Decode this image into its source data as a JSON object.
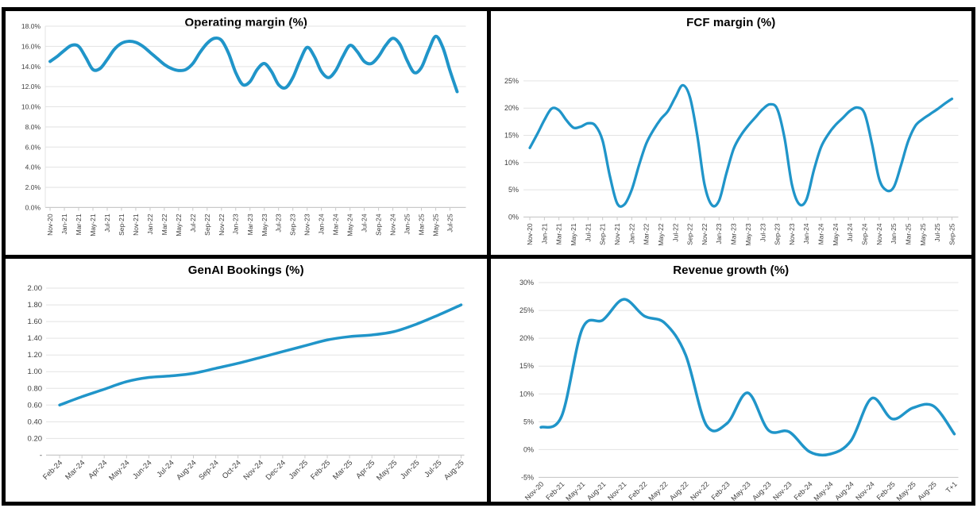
{
  "colors": {
    "line": "#2095C9",
    "gridline": "#E3E3E3",
    "axis_line": "#C9C9C9",
    "tick_label": "#3F3F3F",
    "title": "#000000",
    "frame": "#000000",
    "panel_background": "#FFFFFF"
  },
  "chart_data": [
    {
      "id": "operating-margin",
      "type": "line",
      "title": "Operating margin (%)",
      "legend": "none",
      "grid": true,
      "ylim": [
        0,
        18
      ],
      "y_tick_labels": [
        "18.0%",
        "16.0%",
        "14.0%",
        "12.0%",
        "10.0%",
        "8.0%",
        "6.0%",
        "4.0%",
        "2.0%",
        "0.0%"
      ],
      "y_tick_values": [
        18,
        16,
        14,
        12,
        10,
        8,
        6,
        4,
        2,
        0
      ],
      "x_frequency": "monthly",
      "x_start": "Nov-20",
      "x_end": "Aug-25",
      "label_every_n_points": 2,
      "x_tick_labels": [
        "Nov-20",
        "Jan-21",
        "Mar-21",
        "May-21",
        "Jul-21",
        "Sep-21",
        "Nov-21",
        "Jan-22",
        "Mar-22",
        "May-22",
        "Jul-22",
        "Sep-22",
        "Nov-22",
        "Jan-23",
        "Mar-23",
        "May-23",
        "Jul-23",
        "Sep-23",
        "Nov-23",
        "Jan-24",
        "Mar-24",
        "May-24",
        "Jul-24",
        "Sep-24",
        "Nov-24",
        "Jan-25",
        "Mar-25",
        "May-25",
        "Jul-25"
      ],
      "values": [
        14.5,
        15.0,
        15.6,
        16.1,
        16.0,
        14.9,
        13.7,
        13.8,
        14.7,
        15.7,
        16.3,
        16.5,
        16.4,
        16.0,
        15.4,
        14.8,
        14.2,
        13.8,
        13.6,
        13.7,
        14.3,
        15.4,
        16.3,
        16.8,
        16.6,
        15.3,
        13.4,
        12.2,
        12.5,
        13.7,
        14.3,
        13.5,
        12.2,
        11.9,
        12.9,
        14.6,
        15.9,
        15.0,
        13.5,
        12.9,
        13.6,
        15.0,
        16.1,
        15.5,
        14.5,
        14.3,
        15.0,
        16.1,
        16.8,
        16.2,
        14.6,
        13.4,
        13.9,
        15.6,
        17.0,
        15.9,
        13.6,
        11.5
      ]
    },
    {
      "id": "fcf-margin",
      "type": "line",
      "title": "FCF margin (%)",
      "legend": "none",
      "grid": true,
      "ylim": [
        0,
        27
      ],
      "y_tick_labels": [
        "25%",
        "20%",
        "15%",
        "10%",
        "5%",
        "0%"
      ],
      "y_tick_values": [
        25,
        20,
        15,
        10,
        5,
        0
      ],
      "x_frequency": "monthly",
      "x_start": "Nov-20",
      "x_end": "Sep-25",
      "label_every_n_points": 2,
      "x_tick_labels": [
        "Nov-20",
        "Jan-21",
        "Mar-21",
        "May-21",
        "Jul-21",
        "Sep-21",
        "Nov-21",
        "Jan-22",
        "Mar-22",
        "May-22",
        "Jul-22",
        "Sep-22",
        "Nov-22",
        "Jan-23",
        "Mar-23",
        "May-23",
        "Jul-23",
        "Sep-23",
        "Nov-23",
        "Jan-24",
        "Mar-24",
        "May-24",
        "Jul-24",
        "Sep-24",
        "Nov-24",
        "Jan-25",
        "Mar-25",
        "May-25",
        "Jul-25",
        "Sep-25"
      ],
      "values": [
        12.7,
        15.2,
        17.8,
        19.9,
        19.6,
        17.8,
        16.4,
        16.6,
        17.2,
        16.8,
        14.0,
        7.5,
        2.5,
        2.3,
        5.0,
        9.5,
        13.5,
        16.0,
        18.0,
        19.5,
        22.0,
        24.2,
        22.0,
        15.0,
        6.0,
        2.2,
        3.0,
        8.0,
        12.5,
        15.0,
        16.8,
        18.3,
        19.8,
        20.7,
        19.8,
        14.5,
        6.0,
        2.4,
        3.2,
        8.5,
        12.8,
        15.2,
        16.9,
        18.2,
        19.5,
        20.1,
        19.0,
        13.5,
        7.0,
        4.9,
        5.5,
        9.5,
        14.0,
        16.8,
        18.0,
        18.9,
        19.8,
        20.8,
        21.7
      ]
    },
    {
      "id": "genai-bookings",
      "type": "line",
      "title": "GenAI Bookings (%)",
      "legend": "none",
      "grid": true,
      "ylim": [
        0,
        2.0
      ],
      "y_tick_labels": [
        "2.00",
        "1.80",
        "1.60",
        "1.40",
        "1.20",
        "1.00",
        "0.80",
        "0.60",
        "0.40",
        "0.20",
        "-"
      ],
      "y_tick_values": [
        2.0,
        1.8,
        1.6,
        1.4,
        1.2,
        1.0,
        0.8,
        0.6,
        0.4,
        0.2,
        0
      ],
      "x_frequency": "monthly",
      "x_start": "Feb-24",
      "x_end": "Aug-25",
      "label_every_n_points": 1,
      "x_tick_labels": [
        "Feb-24",
        "Mar-24",
        "Apr-24",
        "May-24",
        "Jun-24",
        "Jul-24",
        "Aug-24",
        "Sep-24",
        "Oct-24",
        "Nov-24",
        "Dec-24",
        "Jan-25",
        "Feb-25",
        "Mar-25",
        "Apr-25",
        "May-25",
        "Jun-25",
        "Jul-25",
        "Aug-25"
      ],
      "values": [
        0.6,
        0.7,
        0.79,
        0.88,
        0.93,
        0.95,
        0.98,
        1.04,
        1.1,
        1.17,
        1.24,
        1.31,
        1.38,
        1.42,
        1.44,
        1.48,
        1.57,
        1.68,
        1.8
      ]
    },
    {
      "id": "revenue-growth",
      "type": "line",
      "title": "Revenue growth (%)",
      "legend": "none",
      "grid": true,
      "ylim": [
        -5,
        30
      ],
      "y_tick_labels": [
        "30%",
        "25%",
        "20%",
        "15%",
        "10%",
        "5%",
        "0%",
        "-5%"
      ],
      "y_tick_values": [
        30,
        25,
        20,
        15,
        10,
        5,
        0,
        -5
      ],
      "x_frequency": "quarterly",
      "x_start": "Nov-20",
      "x_end": "T+1",
      "label_every_n_points": 1,
      "x_tick_labels": [
        "Nov-20",
        "Feb-21",
        "May-21",
        "Aug-21",
        "Nov-21",
        "Feb-22",
        "May-22",
        "Aug-22",
        "Nov-22",
        "Feb-23",
        "May-23",
        "Aug-23",
        "Nov-23",
        "Feb-24",
        "May-24",
        "Aug-24",
        "Nov-24",
        "Feb-25",
        "May-25",
        "Aug-25",
        "T+1"
      ],
      "values": [
        4.0,
        6.0,
        21.7,
        23.3,
        27.0,
        24.0,
        22.7,
        17.0,
        4.4,
        4.7,
        10.2,
        3.5,
        3.2,
        -0.4,
        -0.8,
        1.6,
        9.2,
        5.5,
        7.5,
        7.8,
        2.8
      ]
    }
  ]
}
